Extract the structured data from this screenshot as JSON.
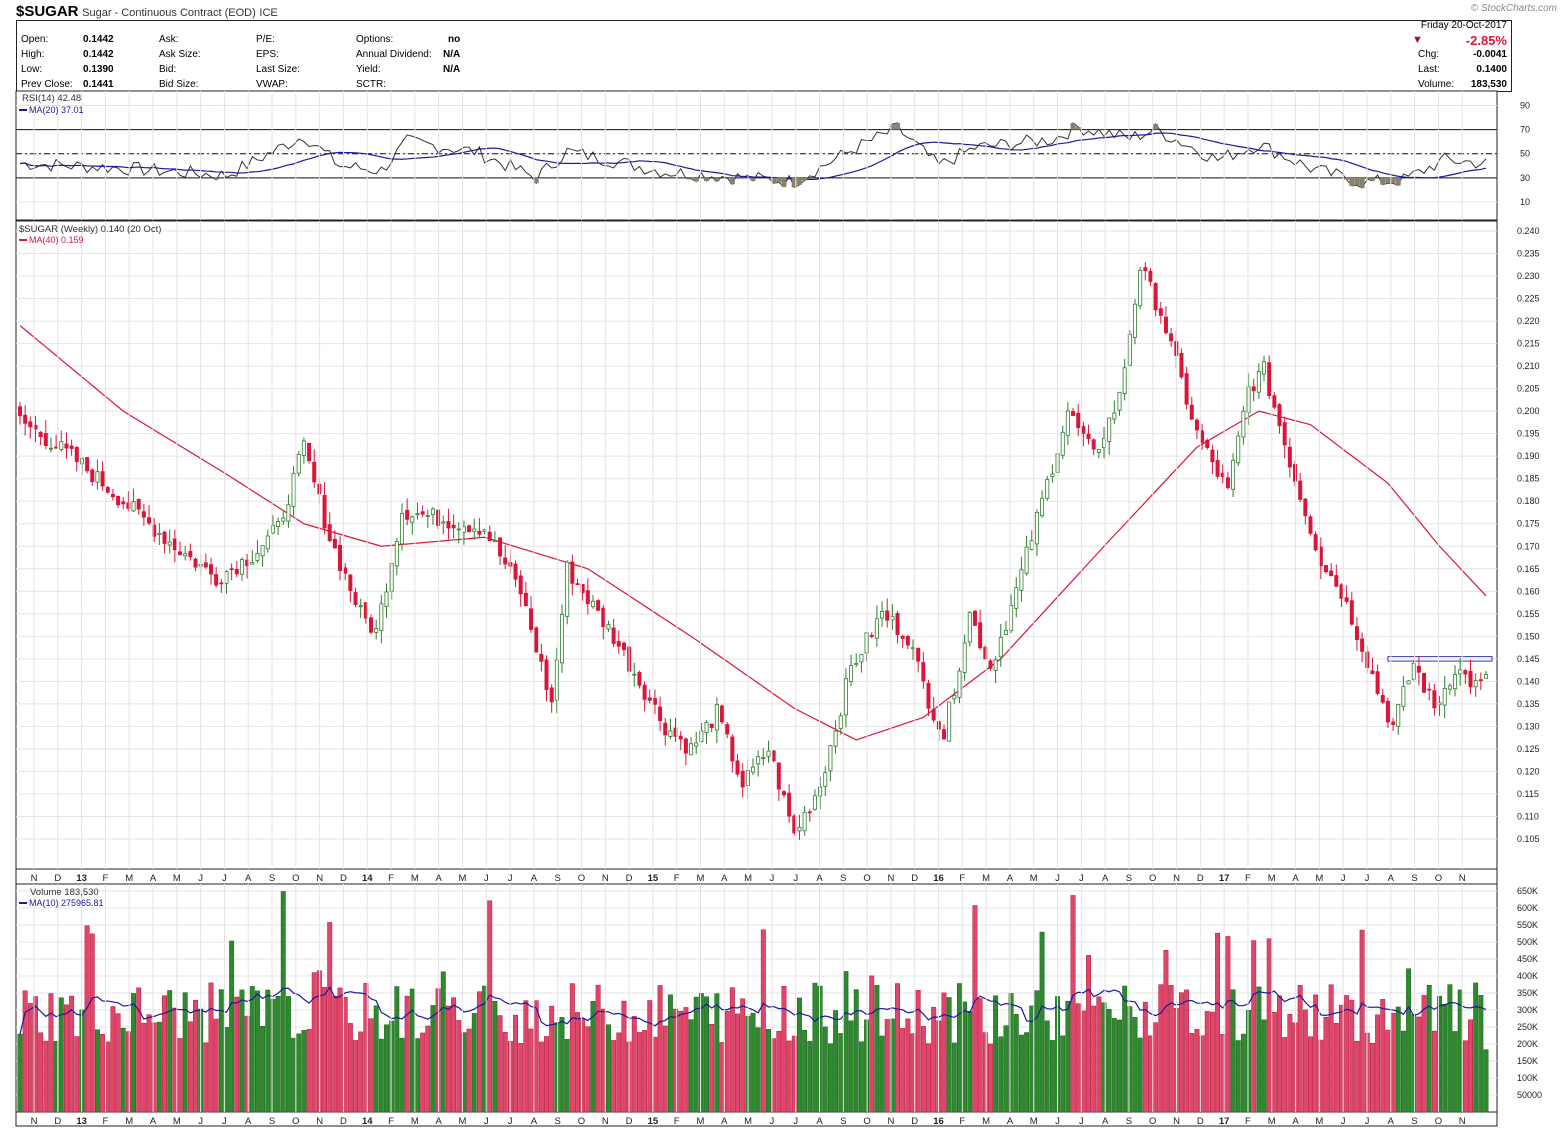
{
  "header": {
    "symbol": "$SUGAR",
    "description": "Sugar - Continuous Contract (EOD)",
    "exchange": "ICE",
    "credit": "© StockCharts.com",
    "open_label": "Open:",
    "open": "0.1442",
    "high_label": "High:",
    "high": "0.1442",
    "low_label": "Low:",
    "low": "0.1390",
    "prev_label": "Prev Close:",
    "prev": "0.1441",
    "ask_label": "Ask:",
    "asksize_label": "Ask Size:",
    "bid_label": "Bid:",
    "bidsize_label": "Bid Size:",
    "pe_label": "P/E:",
    "eps_label": "EPS:",
    "lastsize_label": "Last Size:",
    "vwap_label": "VWAP:",
    "options_label": "Options:",
    "options": "no",
    "dividend_label": "Annual Dividend:",
    "dividend": "N/A",
    "yield_label": "Yield:",
    "yield": "N/A",
    "sctr_label": "SCTR:",
    "date": "Friday  20-Oct-2017",
    "change_pct": "-2.85%",
    "chg_label": "Chg:",
    "chg": "-0.0041",
    "last_label": "Last:",
    "last": "0.1400",
    "volume_label": "Volume:",
    "volume": "183,530"
  },
  "colors": {
    "up": "#2e7d2e",
    "down": "#d9163a",
    "ma_price": "#d9163a",
    "ma_blue": "#1a1a9a",
    "grid": "#e4e4e4",
    "zone": "#8a8070"
  },
  "rsi_panel": {
    "legend_rsi": "RSI(14) 42.48",
    "legend_ma": "MA(20) 37.01",
    "ticks": [
      90,
      70,
      50,
      30,
      10
    ]
  },
  "price_panel": {
    "legend_price": "$SUGAR (Weekly) 0.140 (20 Oct)",
    "legend_ma": "MA(40) 0.159",
    "ticks": [
      "0.240",
      "0.235",
      "0.230",
      "0.225",
      "0.220",
      "0.215",
      "0.210",
      "0.205",
      "0.200",
      "0.195",
      "0.190",
      "0.185",
      "0.180",
      "0.175",
      "0.170",
      "0.165",
      "0.160",
      "0.155",
      "0.150",
      "0.145",
      "0.140",
      "0.135",
      "0.130",
      "0.125",
      "0.120",
      "0.115",
      "0.110",
      "0.105"
    ]
  },
  "volume_panel": {
    "legend_vol": "Volume 183,530",
    "legend_ma": "MA(10) 275965.81",
    "ticks": [
      "650K",
      "600K",
      "550K",
      "500K",
      "450K",
      "400K",
      "350K",
      "300K",
      "250K",
      "200K",
      "150K",
      "100K",
      "50000"
    ]
  },
  "x_axis": [
    {
      "label": "N",
      "bold": false
    },
    {
      "label": "D",
      "bold": false
    },
    {
      "label": "13",
      "bold": true
    },
    {
      "label": "F",
      "bold": false
    },
    {
      "label": "M",
      "bold": false
    },
    {
      "label": "A",
      "bold": false
    },
    {
      "label": "M",
      "bold": false
    },
    {
      "label": "J",
      "bold": false
    },
    {
      "label": "J",
      "bold": false
    },
    {
      "label": "A",
      "bold": false
    },
    {
      "label": "S",
      "bold": false
    },
    {
      "label": "O",
      "bold": false
    },
    {
      "label": "N",
      "bold": false
    },
    {
      "label": "D",
      "bold": false
    },
    {
      "label": "14",
      "bold": true
    },
    {
      "label": "F",
      "bold": false
    },
    {
      "label": "M",
      "bold": false
    },
    {
      "label": "A",
      "bold": false
    },
    {
      "label": "M",
      "bold": false
    },
    {
      "label": "J",
      "bold": false
    },
    {
      "label": "J",
      "bold": false
    },
    {
      "label": "A",
      "bold": false
    },
    {
      "label": "S",
      "bold": false
    },
    {
      "label": "O",
      "bold": false
    },
    {
      "label": "N",
      "bold": false
    },
    {
      "label": "D",
      "bold": false
    },
    {
      "label": "15",
      "bold": true
    },
    {
      "label": "F",
      "bold": false
    },
    {
      "label": "M",
      "bold": false
    },
    {
      "label": "A",
      "bold": false
    },
    {
      "label": "M",
      "bold": false
    },
    {
      "label": "J",
      "bold": false
    },
    {
      "label": "J",
      "bold": false
    },
    {
      "label": "A",
      "bold": false
    },
    {
      "label": "S",
      "bold": false
    },
    {
      "label": "O",
      "bold": false
    },
    {
      "label": "N",
      "bold": false
    },
    {
      "label": "D",
      "bold": false
    },
    {
      "label": "16",
      "bold": true
    },
    {
      "label": "F",
      "bold": false
    },
    {
      "label": "M",
      "bold": false
    },
    {
      "label": "A",
      "bold": false
    },
    {
      "label": "M",
      "bold": false
    },
    {
      "label": "J",
      "bold": false
    },
    {
      "label": "J",
      "bold": false
    },
    {
      "label": "A",
      "bold": false
    },
    {
      "label": "S",
      "bold": false
    },
    {
      "label": "O",
      "bold": false
    },
    {
      "label": "N",
      "bold": false
    },
    {
      "label": "D",
      "bold": false
    },
    {
      "label": "17",
      "bold": true
    },
    {
      "label": "F",
      "bold": false
    },
    {
      "label": "M",
      "bold": false
    },
    {
      "label": "A",
      "bold": false
    },
    {
      "label": "M",
      "bold": false
    },
    {
      "label": "J",
      "bold": false
    },
    {
      "label": "J",
      "bold": false
    },
    {
      "label": "A",
      "bold": false
    },
    {
      "label": "S",
      "bold": false
    },
    {
      "label": "O",
      "bold": false
    },
    {
      "label": "N",
      "bold": false
    }
  ],
  "chart_data": {
    "type": "candlestick",
    "title": "$SUGAR (Weekly) 0.140 (20 Oct)",
    "period": "Weekly, Nov 2012 - Oct 2017",
    "price_ylim": [
      0.1,
      0.242
    ],
    "rsi_ylim": [
      0,
      100
    ],
    "volume_ylim": [
      0,
      670000
    ],
    "price_keypoints": [
      {
        "week": 0,
        "close": 0.198
      },
      {
        "week": 10,
        "close": 0.19
      },
      {
        "week": 20,
        "close": 0.18
      },
      {
        "week": 30,
        "close": 0.17
      },
      {
        "week": 38,
        "close": 0.163
      },
      {
        "week": 45,
        "close": 0.168
      },
      {
        "week": 50,
        "close": 0.174
      },
      {
        "week": 55,
        "close": 0.192
      },
      {
        "week": 60,
        "close": 0.172
      },
      {
        "week": 66,
        "close": 0.155
      },
      {
        "week": 69,
        "close": 0.151
      },
      {
        "week": 74,
        "close": 0.178
      },
      {
        "week": 90,
        "close": 0.174
      },
      {
        "week": 97,
        "close": 0.16
      },
      {
        "week": 103,
        "close": 0.135
      },
      {
        "week": 106,
        "close": 0.165
      },
      {
        "week": 115,
        "close": 0.15
      },
      {
        "week": 125,
        "close": 0.13
      },
      {
        "week": 130,
        "close": 0.125
      },
      {
        "week": 135,
        "close": 0.133
      },
      {
        "week": 140,
        "close": 0.117
      },
      {
        "week": 145,
        "close": 0.125
      },
      {
        "week": 150,
        "close": 0.106
      },
      {
        "week": 155,
        "close": 0.117
      },
      {
        "week": 161,
        "close": 0.143
      },
      {
        "week": 167,
        "close": 0.155
      },
      {
        "week": 172,
        "close": 0.15
      },
      {
        "week": 176,
        "close": 0.136
      },
      {
        "week": 179,
        "close": 0.128
      },
      {
        "week": 184,
        "close": 0.155
      },
      {
        "week": 188,
        "close": 0.143
      },
      {
        "week": 193,
        "close": 0.16
      },
      {
        "week": 198,
        "close": 0.18
      },
      {
        "week": 203,
        "close": 0.2
      },
      {
        "week": 208,
        "close": 0.19
      },
      {
        "week": 213,
        "close": 0.203
      },
      {
        "week": 217,
        "close": 0.232
      },
      {
        "week": 221,
        "close": 0.222
      },
      {
        "week": 228,
        "close": 0.195
      },
      {
        "week": 234,
        "close": 0.182
      },
      {
        "week": 238,
        "close": 0.205
      },
      {
        "week": 241,
        "close": 0.209
      },
      {
        "week": 247,
        "close": 0.185
      },
      {
        "week": 252,
        "close": 0.167
      },
      {
        "week": 256,
        "close": 0.16
      },
      {
        "week": 260,
        "close": 0.148
      },
      {
        "week": 263,
        "close": 0.138
      },
      {
        "week": 266,
        "close": 0.13
      },
      {
        "week": 270,
        "close": 0.144
      },
      {
        "week": 274,
        "close": 0.134
      },
      {
        "week": 278,
        "close": 0.143
      },
      {
        "week": 282,
        "close": 0.139
      },
      {
        "week": 284,
        "close": 0.14
      }
    ],
    "ma40_keypoints": [
      {
        "week": 0,
        "value": 0.219
      },
      {
        "week": 20,
        "value": 0.2
      },
      {
        "week": 40,
        "value": 0.186
      },
      {
        "week": 55,
        "value": 0.175
      },
      {
        "week": 70,
        "value": 0.17
      },
      {
        "week": 90,
        "value": 0.172
      },
      {
        "week": 110,
        "value": 0.165
      },
      {
        "week": 130,
        "value": 0.15
      },
      {
        "week": 150,
        "value": 0.134
      },
      {
        "week": 162,
        "value": 0.127
      },
      {
        "week": 175,
        "value": 0.132
      },
      {
        "week": 190,
        "value": 0.145
      },
      {
        "week": 210,
        "value": 0.17
      },
      {
        "week": 228,
        "value": 0.192
      },
      {
        "week": 240,
        "value": 0.2
      },
      {
        "week": 250,
        "value": 0.197
      },
      {
        "week": 265,
        "value": 0.184
      },
      {
        "week": 275,
        "value": 0.17
      },
      {
        "week": 284,
        "value": 0.159
      }
    ],
    "rsi_keypoints": [
      {
        "week": 0,
        "value": 42
      },
      {
        "week": 20,
        "value": 38
      },
      {
        "week": 40,
        "value": 32
      },
      {
        "week": 55,
        "value": 65
      },
      {
        "week": 62,
        "value": 40
      },
      {
        "week": 70,
        "value": 36
      },
      {
        "week": 75,
        "value": 60
      },
      {
        "week": 88,
        "value": 52
      },
      {
        "week": 100,
        "value": 30
      },
      {
        "week": 106,
        "value": 52
      },
      {
        "week": 125,
        "value": 35
      },
      {
        "week": 140,
        "value": 30
      },
      {
        "week": 150,
        "value": 27
      },
      {
        "week": 162,
        "value": 55
      },
      {
        "week": 170,
        "value": 71
      },
      {
        "week": 178,
        "value": 40
      },
      {
        "week": 185,
        "value": 55
      },
      {
        "week": 200,
        "value": 62
      },
      {
        "week": 205,
        "value": 72
      },
      {
        "week": 215,
        "value": 63
      },
      {
        "week": 220,
        "value": 70
      },
      {
        "week": 232,
        "value": 45
      },
      {
        "week": 240,
        "value": 58
      },
      {
        "week": 250,
        "value": 38
      },
      {
        "week": 260,
        "value": 26
      },
      {
        "week": 268,
        "value": 28
      },
      {
        "week": 276,
        "value": 45
      },
      {
        "week": 284,
        "value": 42
      }
    ],
    "resistance_band": [
      0.1445,
      0.1455
    ],
    "last_close": 0.14,
    "last_volume": 183530
  }
}
